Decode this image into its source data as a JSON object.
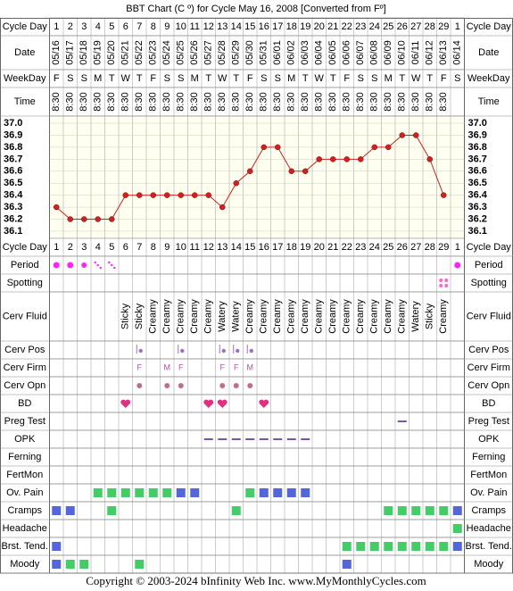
{
  "title": "BBT Chart (C º) for Cycle May 16, 2008  [Converted from Fº]",
  "footer": "Copyright © 2003-2024 bInfinity Web Inc.    www.MyMonthlyCycles.com",
  "labels": {
    "cycle_day": "Cycle Day",
    "date": "Date",
    "weekday": "WeekDay",
    "time": "Time",
    "period": "Period",
    "spotting": "Spotting",
    "cerv_fluid": "Cerv Fluid",
    "cerv_pos": "Cerv Pos",
    "cerv_firm": "Cerv Firm",
    "cerv_opn": "Cerv Opn",
    "bd": "BD",
    "preg_test": "Preg Test",
    "opk": "OPK",
    "ferning": "Ferning",
    "fertmon": "FertMon",
    "ov_pain": "Ov. Pain",
    "cramps": "Cramps",
    "headache": "Headache",
    "breast_tenderness": "Brst. Tend.",
    "moody": "Moody"
  },
  "days": {
    "cycle_day": [
      1,
      2,
      3,
      4,
      5,
      6,
      7,
      8,
      9,
      10,
      11,
      12,
      13,
      14,
      15,
      16,
      17,
      18,
      19,
      20,
      21,
      22,
      23,
      24,
      25,
      26,
      27,
      28,
      29,
      1
    ],
    "date": [
      "05/16",
      "05/17",
      "05/18",
      "05/19",
      "05/20",
      "05/21",
      "05/22",
      "05/23",
      "05/24",
      "05/25",
      "05/26",
      "05/27",
      "05/28",
      "05/29",
      "05/30",
      "05/31",
      "06/01",
      "06/02",
      "06/03",
      "06/04",
      "06/05",
      "06/06",
      "06/07",
      "06/08",
      "06/09",
      "06/10",
      "06/11",
      "06/12",
      "06/13",
      "06/14"
    ],
    "weekday": [
      "F",
      "S",
      "S",
      "M",
      "T",
      "W",
      "T",
      "F",
      "S",
      "S",
      "M",
      "T",
      "W",
      "T",
      "F",
      "S",
      "S",
      "M",
      "T",
      "W",
      "T",
      "F",
      "S",
      "S",
      "M",
      "T",
      "W",
      "T",
      "F",
      "S"
    ],
    "time": [
      "8:30",
      "8:30",
      "8:30",
      "8:30",
      "8:30",
      "8:30",
      "8:30",
      "8:30",
      "8:30",
      "8:30",
      "8:30",
      "8:30",
      "8:30",
      "8:30",
      "8:30",
      "8:30",
      "8:30",
      "8:30",
      "8:30",
      "8:30",
      "8:30",
      "8:30",
      "8:30",
      "8:30",
      "8:30",
      "8:30",
      "8:30",
      "8:30",
      "8:30",
      null
    ]
  },
  "chart_data": {
    "type": "line",
    "color": "#cc2222",
    "grid": true,
    "values": [
      36.3,
      36.2,
      36.2,
      36.2,
      36.2,
      36.4,
      36.4,
      36.4,
      36.4,
      36.4,
      36.4,
      36.4,
      36.3,
      36.5,
      36.6,
      36.8,
      36.8,
      36.6,
      36.6,
      36.7,
      36.7,
      36.7,
      36.7,
      36.8,
      36.8,
      36.9,
      36.9,
      36.7,
      36.4,
      null
    ],
    "ylim": [
      36.04,
      37.06
    ],
    "yticks": [
      {
        "value": 37,
        "label": "37.0"
      },
      36.9,
      36.8,
      36.7,
      36.6,
      36.5,
      36.4,
      36.3,
      36.2,
      36.1
    ]
  },
  "period": [
    3,
    3,
    2,
    1,
    1,
    null,
    null,
    null,
    null,
    null,
    null,
    null,
    null,
    null,
    null,
    null,
    null,
    null,
    null,
    null,
    null,
    null,
    null,
    null,
    null,
    null,
    null,
    null,
    null,
    3
  ],
  "spotting": [
    null,
    null,
    null,
    null,
    null,
    null,
    null,
    null,
    null,
    null,
    null,
    null,
    null,
    null,
    null,
    null,
    null,
    null,
    null,
    null,
    null,
    null,
    null,
    null,
    null,
    null,
    null,
    null,
    1,
    null
  ],
  "cerv_fluid": [
    null,
    null,
    null,
    null,
    null,
    "Sticky",
    "Sticky",
    "Creamy",
    "Creamy",
    "Creamy",
    "Creamy",
    "Creamy",
    "Watery",
    "Watery",
    "Creamy",
    "Creamy",
    "Creamy",
    "Creamy",
    "Creamy",
    "Creamy",
    "Creamy",
    "Creamy",
    "Creamy",
    "Creamy",
    "Creamy",
    "Creamy",
    "Watery",
    "Sticky",
    "Creamy",
    null
  ],
  "cerv_pos": [
    null,
    null,
    null,
    null,
    null,
    null,
    1,
    null,
    null,
    1,
    null,
    null,
    1,
    1,
    1,
    null,
    null,
    null,
    null,
    null,
    null,
    null,
    null,
    null,
    null,
    null,
    null,
    null,
    null,
    null
  ],
  "cerv_firm": [
    null,
    null,
    null,
    null,
    null,
    null,
    "F",
    null,
    "M",
    "F",
    null,
    null,
    "F",
    "F",
    "M",
    null,
    null,
    null,
    null,
    null,
    null,
    null,
    null,
    null,
    null,
    null,
    null,
    null,
    null,
    null
  ],
  "cerv_opn": [
    null,
    null,
    null,
    null,
    null,
    null,
    1,
    null,
    1,
    1,
    null,
    null,
    1,
    1,
    1,
    null,
    null,
    null,
    null,
    null,
    null,
    null,
    null,
    null,
    null,
    null,
    null,
    null,
    null,
    null
  ],
  "bd": [
    null,
    null,
    null,
    null,
    null,
    1,
    null,
    null,
    null,
    null,
    null,
    1,
    1,
    null,
    null,
    1,
    null,
    null,
    null,
    null,
    null,
    null,
    null,
    null,
    null,
    null,
    null,
    null,
    null,
    null
  ],
  "preg_test": [
    null,
    null,
    null,
    null,
    null,
    null,
    null,
    null,
    null,
    null,
    null,
    null,
    null,
    null,
    null,
    null,
    null,
    null,
    null,
    null,
    null,
    null,
    null,
    null,
    null,
    1,
    null,
    null,
    null,
    null
  ],
  "opk": [
    null,
    null,
    null,
    null,
    null,
    null,
    null,
    null,
    null,
    null,
    null,
    1,
    1,
    1,
    1,
    1,
    1,
    1,
    1,
    null,
    null,
    null,
    null,
    null,
    null,
    null,
    null,
    null,
    null,
    null
  ],
  "ferning": [
    null,
    null,
    null,
    null,
    null,
    null,
    null,
    null,
    null,
    null,
    null,
    null,
    null,
    null,
    null,
    null,
    null,
    null,
    null,
    null,
    null,
    null,
    null,
    null,
    null,
    null,
    null,
    null,
    null,
    null
  ],
  "fertmon": [
    null,
    null,
    null,
    null,
    null,
    null,
    null,
    null,
    null,
    null,
    null,
    null,
    null,
    null,
    null,
    null,
    null,
    null,
    null,
    null,
    null,
    null,
    null,
    null,
    null,
    null,
    null,
    null,
    null,
    null
  ],
  "ov_pain": [
    null,
    null,
    null,
    "#44cc66",
    "#44cc66",
    "#44cc66",
    "#44cc66",
    "#44cc66",
    "#44cc66",
    "#5566dd",
    "#5566dd",
    null,
    null,
    null,
    "#44cc66",
    "#5566dd",
    "#5566dd",
    "#5566dd",
    "#5566dd",
    null,
    null,
    null,
    null,
    null,
    null,
    null,
    null,
    null,
    null,
    null
  ],
  "cramps": [
    "#5566dd",
    "#5566dd",
    null,
    null,
    "#44cc66",
    null,
    null,
    null,
    null,
    null,
    null,
    null,
    null,
    "#44cc66",
    null,
    null,
    null,
    null,
    null,
    null,
    null,
    null,
    null,
    null,
    "#44cc66",
    "#44cc66",
    "#44cc66",
    "#44cc66",
    "#44cc66",
    "#5566dd"
  ],
  "headache": [
    null,
    null,
    null,
    null,
    null,
    null,
    null,
    null,
    null,
    null,
    null,
    null,
    null,
    null,
    null,
    null,
    null,
    null,
    null,
    null,
    null,
    null,
    null,
    null,
    null,
    null,
    null,
    null,
    null,
    "#44cc66"
  ],
  "breast_tenderness": [
    "#5566dd",
    null,
    null,
    null,
    null,
    null,
    null,
    null,
    null,
    null,
    null,
    null,
    null,
    null,
    null,
    null,
    null,
    null,
    null,
    null,
    null,
    "#44cc66",
    "#44cc66",
    "#44cc66",
    "#44cc66",
    "#44cc66",
    "#44cc66",
    "#44cc66",
    "#44cc66",
    "#5566dd"
  ],
  "moody": [
    "#5566dd",
    "#44cc66",
    "#44cc66",
    null,
    null,
    null,
    "#44cc66",
    null,
    null,
    null,
    null,
    null,
    null,
    null,
    null,
    null,
    null,
    null,
    null,
    null,
    null,
    "#5566dd",
    null,
    null,
    null,
    null,
    null,
    null,
    null,
    null
  ]
}
